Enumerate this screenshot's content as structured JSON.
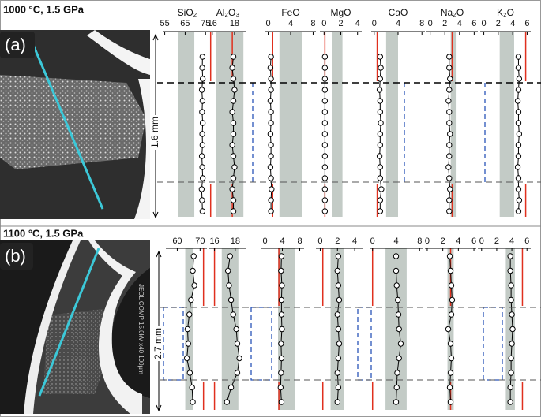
{
  "panels": [
    {
      "label": "(a)",
      "title": "1000 °C, 1.5 GPa",
      "scale_label": "1.6 mm",
      "chart_data": [
        {
          "type": "line",
          "title": "SiO₂",
          "xlim": [
            54,
            78
          ],
          "xticks": [
            55,
            65,
            75
          ],
          "band": [
            61.5,
            69.5
          ],
          "reference": 77.5,
          "values": [
            73.5,
            73.4,
            73.6,
            73.2,
            73.5,
            73.3,
            73.6,
            73.4,
            73.5,
            73.2,
            73.4,
            73.6,
            73.1,
            73.3,
            73.5
          ]
        },
        {
          "type": "line",
          "title": "Al₂O₃",
          "xlim": [
            15.8,
            19
          ],
          "xticks": [
            16,
            18
          ],
          "band": [
            16.3,
            18.8
          ],
          "reference": 17.8,
          "values": [
            17.9,
            17.8,
            17.9,
            18.0,
            17.9,
            17.8,
            17.9,
            17.9,
            17.8,
            17.9,
            18.0,
            17.9,
            17.8,
            17.9,
            17.9
          ]
        },
        {
          "type": "line",
          "title": "FeO",
          "xlim": [
            -0.5,
            8.5
          ],
          "xticks": [
            0,
            4,
            8
          ],
          "band": [
            2,
            6
          ],
          "reference": 0.8,
          "values": [
            0.5,
            0.4,
            0.5,
            0.5,
            0.4,
            0.5,
            0.5,
            0.4,
            0.5,
            0.5,
            0.4,
            0.5,
            0.6,
            0.5,
            0.5
          ]
        },
        {
          "type": "line",
          "title": "MgO",
          "xlim": [
            -0.5,
            4.5
          ],
          "xticks": [
            0,
            2,
            4
          ],
          "band": [
            1,
            2.2
          ],
          "reference": 0.1,
          "values": [
            0.1,
            0.1,
            0.1,
            0.1,
            0.1,
            0.1,
            0.1,
            0.1,
            0.1,
            0.1,
            0.1,
            0.1,
            0.1,
            0.1,
            0.1
          ]
        },
        {
          "type": "line",
          "title": "CaO",
          "xlim": [
            -0.5,
            8.5
          ],
          "xticks": [
            0,
            4,
            8
          ],
          "band": [
            2,
            4
          ],
          "reference": 0.5,
          "values": [
            1.0,
            1.1,
            1.0,
            0.9,
            1.0,
            1.0,
            1.1,
            1.0,
            1.0,
            0.9,
            1.0,
            1.0,
            1.2,
            1.0,
            1.0
          ]
        },
        {
          "type": "line",
          "title": "Na₂O",
          "xlim": [
            -0.5,
            6.5
          ],
          "xticks": [
            0,
            2,
            4,
            6
          ],
          "band": [
            2.8,
            3.6
          ],
          "reference": 3,
          "values": [
            2.6,
            2.6,
            2.7,
            2.6,
            2.5,
            2.6,
            2.6,
            2.7,
            2.6,
            2.6,
            2.5,
            2.6,
            2.7,
            2.6,
            2.6
          ]
        },
        {
          "type": "line",
          "title": "K₂O",
          "xlim": [
            -0.5,
            6.5
          ],
          "xticks": [
            0,
            2,
            4,
            6
          ],
          "band": [
            2.2,
            4.2
          ],
          "reference": 5.8,
          "values": [
            4.8,
            4.8,
            4.9,
            4.8,
            4.7,
            4.8,
            4.8,
            4.9,
            4.8,
            4.8,
            4.7,
            4.8,
            4.8,
            4.9,
            4.8
          ]
        }
      ]
    },
    {
      "label": "(b)",
      "title": "1100 °C, 1.5 GPa",
      "scale_label": "2.7 mm",
      "sem_label": "JEOL COMP 15.0kV x40 100µm",
      "chart_data": [
        {
          "type": "line",
          "xlim": [
            55,
            73
          ],
          "xticks": [
            60,
            70
          ],
          "band": [
            63.5,
            67
          ],
          "reference": 71.5,
          "values": [
            67.2,
            66.8,
            67.5,
            66.0,
            65.3,
            64.5,
            64.8,
            64.2,
            65.5,
            66.5,
            66.8
          ]
        },
        {
          "type": "line",
          "xlim": [
            15.5,
            19
          ],
          "xticks": [
            16,
            18
          ],
          "band": [
            16.7,
            18.3
          ],
          "reference": 16,
          "values": [
            17.5,
            17.3,
            17.4,
            17.6,
            17.8,
            18.1,
            18.2,
            18.4,
            18.2,
            17.6,
            17.2
          ]
        },
        {
          "type": "line",
          "xlim": [
            -1,
            9
          ],
          "xticks": [
            0,
            4,
            8
          ],
          "band": [
            3,
            7
          ],
          "reference": 3.2,
          "values": [
            3.8,
            3.7,
            3.9,
            3.8,
            3.8,
            3.9,
            3.7,
            3.8,
            3.7,
            3.6,
            3.8
          ]
        },
        {
          "type": "line",
          "xlim": [
            -0.5,
            5
          ],
          "xticks": [
            0,
            2,
            4
          ],
          "band": [
            1.2,
            2.8
          ],
          "reference": 0.3,
          "values": [
            2.1,
            2.0,
            2.1,
            2.2,
            2.0,
            2.1,
            2.2,
            2.1,
            2.0,
            2.1,
            2.0
          ]
        },
        {
          "type": "line",
          "xlim": [
            -0.5,
            8.5
          ],
          "xticks": [
            0,
            4,
            8
          ],
          "band": [
            2.2,
            5.8
          ],
          "reference": 0,
          "values": [
            4.0,
            4.0,
            4.1,
            4.3,
            4.4,
            4.5,
            4.8,
            4.5,
            4.2,
            4.1,
            4.0
          ]
        },
        {
          "type": "line",
          "xlim": [
            -0.3,
            6.3
          ],
          "xticks": [
            0,
            2,
            4,
            6
          ],
          "band": [
            2.6,
            3.4
          ],
          "reference": 3,
          "values": [
            2.9,
            3.0,
            3.1,
            3.2,
            3.1,
            2.7,
            3.0,
            3.1,
            3.0,
            2.9,
            3.0
          ]
        },
        {
          "type": "line",
          "xlim": [
            -0.5,
            6.5
          ],
          "xticks": [
            0,
            2,
            4,
            6
          ],
          "band": [
            3.2,
            4.4
          ],
          "reference": 5.4,
          "values": [
            3.8,
            3.8,
            3.9,
            3.9,
            4.0,
            4.1,
            4.0,
            3.9,
            3.9,
            3.8,
            3.8
          ]
        }
      ]
    }
  ]
}
